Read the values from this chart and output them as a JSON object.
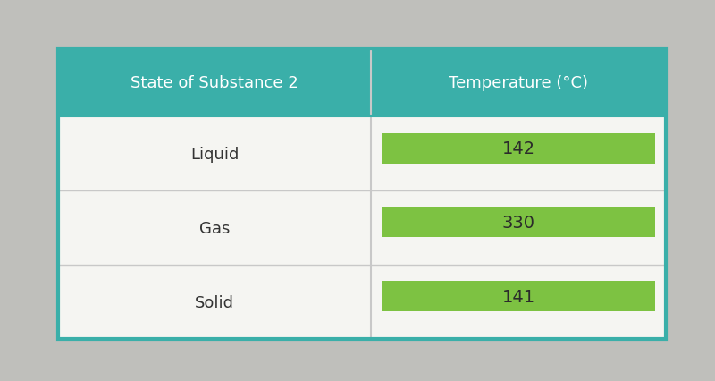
{
  "col1_header": "State of Substance 2",
  "col2_header": "Temperature (°C)",
  "rows": [
    {
      "state": "Liquid",
      "temp": "142"
    },
    {
      "state": "Gas",
      "temp": "330"
    },
    {
      "state": "Solid",
      "temp": "141"
    }
  ],
  "header_bg": "#3AAFA9",
  "header_text_color": "#FFFFFF",
  "row_bg": "#F5F5F2",
  "row_text_color": "#333333",
  "green_cell_bg": "#7DC242",
  "green_cell_text": "#2B2B2B",
  "border_color": "#3AAFA9",
  "divider_color": "#C8C8C8",
  "figure_bg": "#BFBFBB",
  "header_fontsize": 13,
  "row_fontsize": 13,
  "temp_fontsize": 14
}
